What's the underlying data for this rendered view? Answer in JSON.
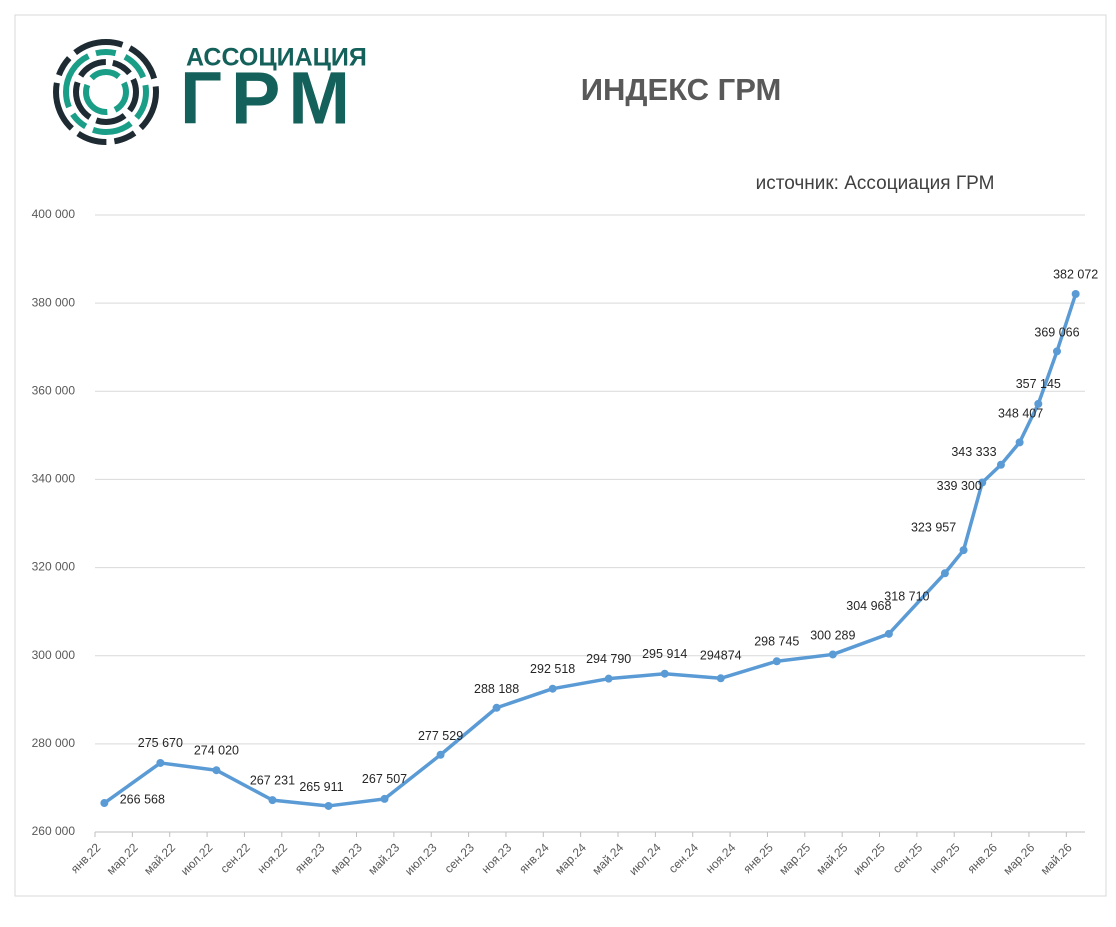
{
  "logo": {
    "top": "АССОЦИАЦИЯ",
    "bottom": "ГРМ"
  },
  "chart_data": {
    "type": "line",
    "title": "ИНДЕКС ГРМ",
    "subtitle": "источник: Ассоциация ГРМ",
    "categories": [
      "янв.22",
      "мар.22",
      "май.22",
      "июл.22",
      "сен.22",
      "ноя.22",
      "янв.23",
      "мар.23",
      "май.23",
      "июл.23",
      "сен.23",
      "ноя.23",
      "янв.24",
      "мар.24",
      "май.24",
      "июл.24",
      "сен.24",
      "ноя.24",
      "янв.25",
      "мар.25",
      "май.25",
      "июл.25",
      "сен.25",
      "ноя.25",
      "янв.26",
      "мар.26",
      "май.26"
    ],
    "series": [
      {
        "name": "Индекс ГРМ",
        "color": "#5b9bd5",
        "x": [
          "янв.22",
          "апр.22",
          "июл.22",
          "окт.22",
          "янв.23",
          "апр.23",
          "июл.23",
          "окт.23",
          "янв.24",
          "апр.24",
          "июл.24",
          "окт.24",
          "янв.25",
          "апр.25",
          "июл.25",
          "окт.25",
          "ноя.25",
          "дек.25",
          "янв.26",
          "фев.26",
          "мар.26",
          "апр.26",
          "май.26"
        ],
        "values": [
          266568,
          275670,
          274020,
          267231,
          265911,
          267507,
          277529,
          288188,
          292518,
          294790,
          295914,
          294874,
          298745,
          300289,
          304968,
          318710,
          323957,
          339300,
          343333,
          348407,
          357145,
          369066,
          382072
        ],
        "value_labels": [
          "266 568",
          "275 670",
          "274 020",
          "267 231",
          "265 911",
          "267 507",
          "277 529",
          "288 188",
          "292 518",
          "294 790",
          "295 914",
          "294874",
          "298 745",
          "300 289",
          "304 968",
          "318 710",
          "323 957",
          "339 300",
          "343 333",
          "348 407",
          "357 145",
          "369 066",
          "382 072"
        ]
      }
    ],
    "ylim": [
      260000,
      400000
    ],
    "yticks": [
      {
        "value": 260000,
        "label": "260 000"
      },
      {
        "value": 280000,
        "label": "280 000"
      },
      {
        "value": 300000,
        "label": "300 000"
      },
      {
        "value": 320000,
        "label": "320 000"
      },
      {
        "value": 340000,
        "label": "340 000"
      },
      {
        "value": 360000,
        "label": "360 000"
      },
      {
        "value": 380000,
        "label": "380 000"
      },
      {
        "value": 400000,
        "label": "400 000"
      }
    ],
    "grid": true
  }
}
